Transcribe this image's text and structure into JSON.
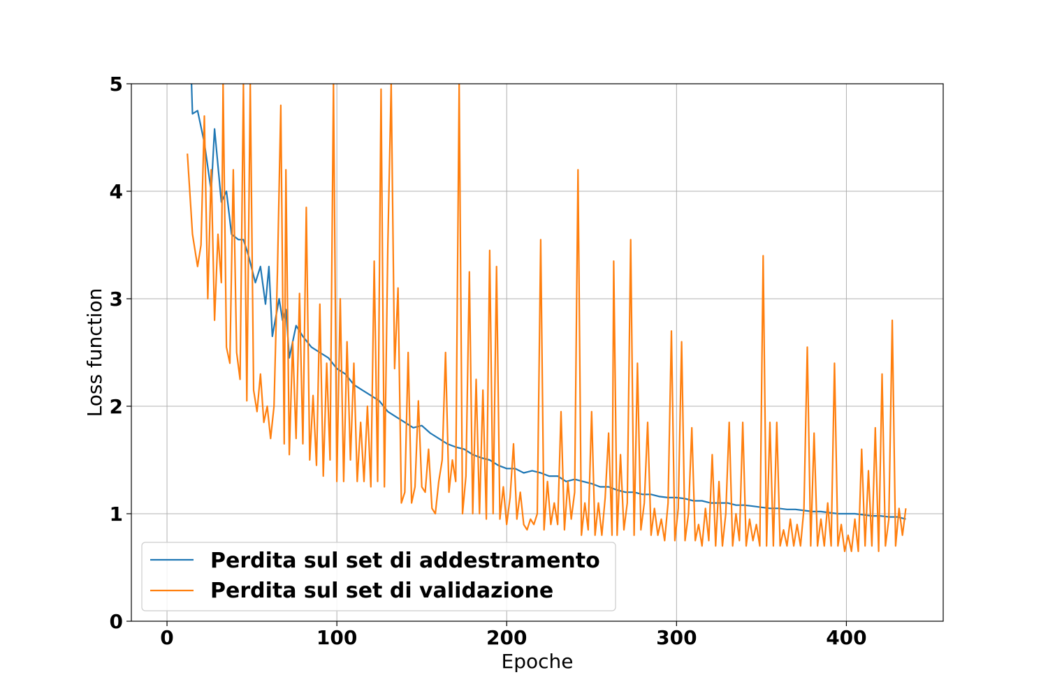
{
  "chart_data": {
    "type": "line",
    "xlabel": "Epoche",
    "ylabel": "Loss function",
    "xlim": [
      -21,
      457
    ],
    "ylim": [
      0,
      5
    ],
    "xticks": [
      0,
      100,
      200,
      300,
      400
    ],
    "yticks": [
      0,
      1,
      2,
      3,
      4,
      5
    ],
    "grid": true,
    "legend_position": "lower-left",
    "series": [
      {
        "name": "Perdita sul set di addestramento",
        "color": "#1f77b4",
        "points": [
          [
            12,
            6.2
          ],
          [
            15,
            4.72
          ],
          [
            18,
            4.75
          ],
          [
            22,
            4.45
          ],
          [
            26,
            4.0
          ],
          [
            28,
            4.58
          ],
          [
            32,
            3.9
          ],
          [
            35,
            4.0
          ],
          [
            38,
            3.6
          ],
          [
            42,
            3.55
          ],
          [
            45,
            3.55
          ],
          [
            48,
            3.4
          ],
          [
            52,
            3.15
          ],
          [
            55,
            3.3
          ],
          [
            58,
            2.95
          ],
          [
            60,
            3.3
          ],
          [
            62,
            2.65
          ],
          [
            66,
            3.0
          ],
          [
            68,
            2.8
          ],
          [
            70,
            2.9
          ],
          [
            72,
            2.45
          ],
          [
            76,
            2.75
          ],
          [
            80,
            2.65
          ],
          [
            85,
            2.55
          ],
          [
            90,
            2.5
          ],
          [
            95,
            2.45
          ],
          [
            100,
            2.35
          ],
          [
            105,
            2.3
          ],
          [
            110,
            2.2
          ],
          [
            115,
            2.15
          ],
          [
            120,
            2.1
          ],
          [
            125,
            2.05
          ],
          [
            130,
            1.95
          ],
          [
            135,
            1.9
          ],
          [
            140,
            1.85
          ],
          [
            145,
            1.8
          ],
          [
            150,
            1.82
          ],
          [
            155,
            1.75
          ],
          [
            160,
            1.7
          ],
          [
            165,
            1.65
          ],
          [
            170,
            1.62
          ],
          [
            175,
            1.6
          ],
          [
            180,
            1.55
          ],
          [
            185,
            1.52
          ],
          [
            190,
            1.5
          ],
          [
            195,
            1.45
          ],
          [
            200,
            1.42
          ],
          [
            205,
            1.42
          ],
          [
            210,
            1.38
          ],
          [
            215,
            1.4
          ],
          [
            220,
            1.38
          ],
          [
            225,
            1.35
          ],
          [
            230,
            1.35
          ],
          [
            235,
            1.3
          ],
          [
            240,
            1.32
          ],
          [
            245,
            1.3
          ],
          [
            250,
            1.28
          ],
          [
            255,
            1.25
          ],
          [
            260,
            1.25
          ],
          [
            265,
            1.22
          ],
          [
            270,
            1.2
          ],
          [
            275,
            1.2
          ],
          [
            280,
            1.18
          ],
          [
            285,
            1.18
          ],
          [
            290,
            1.16
          ],
          [
            295,
            1.15
          ],
          [
            300,
            1.15
          ],
          [
            305,
            1.14
          ],
          [
            310,
            1.12
          ],
          [
            315,
            1.12
          ],
          [
            320,
            1.1
          ],
          [
            325,
            1.1
          ],
          [
            330,
            1.1
          ],
          [
            335,
            1.08
          ],
          [
            340,
            1.08
          ],
          [
            345,
            1.07
          ],
          [
            350,
            1.06
          ],
          [
            355,
            1.05
          ],
          [
            360,
            1.05
          ],
          [
            365,
            1.04
          ],
          [
            370,
            1.04
          ],
          [
            375,
            1.03
          ],
          [
            380,
            1.02
          ],
          [
            385,
            1.02
          ],
          [
            390,
            1.01
          ],
          [
            395,
            1.0
          ],
          [
            400,
            1.0
          ],
          [
            405,
            1.0
          ],
          [
            410,
            0.99
          ],
          [
            415,
            0.98
          ],
          [
            420,
            0.98
          ],
          [
            425,
            0.97
          ],
          [
            430,
            0.97
          ],
          [
            435,
            0.95
          ]
        ]
      },
      {
        "name": "Perdita sul set di validazione",
        "color": "#ff7f0e",
        "points": [
          [
            12,
            4.35
          ],
          [
            15,
            3.6
          ],
          [
            18,
            3.3
          ],
          [
            20,
            3.5
          ],
          [
            22,
            4.7
          ],
          [
            24,
            3.0
          ],
          [
            26,
            4.2
          ],
          [
            28,
            2.8
          ],
          [
            30,
            3.6
          ],
          [
            32,
            3.15
          ],
          [
            33,
            5.0
          ],
          [
            35,
            2.55
          ],
          [
            37,
            2.4
          ],
          [
            39,
            4.2
          ],
          [
            41,
            2.5
          ],
          [
            43,
            2.25
          ],
          [
            45,
            5.0
          ],
          [
            47,
            2.05
          ],
          [
            49,
            5.0
          ],
          [
            51,
            2.15
          ],
          [
            53,
            1.95
          ],
          [
            55,
            2.3
          ],
          [
            57,
            1.85
          ],
          [
            59,
            2.0
          ],
          [
            61,
            1.7
          ],
          [
            63,
            2.0
          ],
          [
            65,
            3.25
          ],
          [
            67,
            4.8
          ],
          [
            69,
            1.65
          ],
          [
            70,
            4.2
          ],
          [
            72,
            1.55
          ],
          [
            74,
            2.6
          ],
          [
            76,
            1.7
          ],
          [
            78,
            3.05
          ],
          [
            80,
            1.65
          ],
          [
            82,
            3.85
          ],
          [
            84,
            1.5
          ],
          [
            86,
            2.1
          ],
          [
            88,
            1.45
          ],
          [
            90,
            2.95
          ],
          [
            92,
            1.35
          ],
          [
            94,
            2.4
          ],
          [
            96,
            1.5
          ],
          [
            98,
            5.0
          ],
          [
            100,
            1.3
          ],
          [
            102,
            3.0
          ],
          [
            104,
            1.3
          ],
          [
            106,
            2.6
          ],
          [
            108,
            1.5
          ],
          [
            110,
            2.4
          ],
          [
            112,
            1.3
          ],
          [
            114,
            1.85
          ],
          [
            116,
            1.3
          ],
          [
            118,
            2.0
          ],
          [
            120,
            1.25
          ],
          [
            122,
            3.35
          ],
          [
            124,
            1.3
          ],
          [
            126,
            4.95
          ],
          [
            128,
            1.25
          ],
          [
            130,
            3.5
          ],
          [
            132,
            5.0
          ],
          [
            134,
            2.35
          ],
          [
            136,
            3.1
          ],
          [
            138,
            1.1
          ],
          [
            140,
            1.2
          ],
          [
            142,
            2.5
          ],
          [
            144,
            1.1
          ],
          [
            146,
            1.25
          ],
          [
            148,
            2.05
          ],
          [
            150,
            1.25
          ],
          [
            152,
            1.2
          ],
          [
            154,
            1.6
          ],
          [
            156,
            1.05
          ],
          [
            158,
            1.0
          ],
          [
            160,
            1.3
          ],
          [
            162,
            1.5
          ],
          [
            164,
            2.5
          ],
          [
            166,
            1.2
          ],
          [
            168,
            1.5
          ],
          [
            170,
            1.3
          ],
          [
            172,
            5.0
          ],
          [
            174,
            1.0
          ],
          [
            176,
            1.35
          ],
          [
            178,
            3.25
          ],
          [
            180,
            1.0
          ],
          [
            182,
            2.25
          ],
          [
            184,
            1.0
          ],
          [
            186,
            2.15
          ],
          [
            188,
            0.95
          ],
          [
            190,
            3.45
          ],
          [
            192,
            1.0
          ],
          [
            194,
            3.3
          ],
          [
            196,
            0.95
          ],
          [
            198,
            1.25
          ],
          [
            200,
            0.9
          ],
          [
            202,
            1.15
          ],
          [
            204,
            1.65
          ],
          [
            206,
            0.95
          ],
          [
            208,
            1.2
          ],
          [
            210,
            0.9
          ],
          [
            212,
            0.85
          ],
          [
            214,
            0.95
          ],
          [
            216,
            0.9
          ],
          [
            218,
            1.0
          ],
          [
            220,
            3.55
          ],
          [
            222,
            0.85
          ],
          [
            224,
            1.3
          ],
          [
            226,
            0.9
          ],
          [
            228,
            1.1
          ],
          [
            230,
            0.9
          ],
          [
            232,
            1.95
          ],
          [
            234,
            0.85
          ],
          [
            236,
            1.3
          ],
          [
            238,
            0.95
          ],
          [
            240,
            1.2
          ],
          [
            242,
            4.2
          ],
          [
            244,
            0.8
          ],
          [
            246,
            1.1
          ],
          [
            248,
            0.85
          ],
          [
            250,
            1.95
          ],
          [
            252,
            0.8
          ],
          [
            254,
            1.1
          ],
          [
            256,
            0.8
          ],
          [
            258,
            1.15
          ],
          [
            260,
            1.75
          ],
          [
            262,
            0.8
          ],
          [
            263,
            3.35
          ],
          [
            265,
            0.8
          ],
          [
            267,
            1.55
          ],
          [
            269,
            0.85
          ],
          [
            271,
            1.1
          ],
          [
            273,
            3.55
          ],
          [
            275,
            0.8
          ],
          [
            277,
            2.4
          ],
          [
            279,
            0.85
          ],
          [
            281,
            1.1
          ],
          [
            283,
            1.85
          ],
          [
            285,
            0.8
          ],
          [
            287,
            1.05
          ],
          [
            289,
            0.8
          ],
          [
            291,
            0.95
          ],
          [
            293,
            0.75
          ],
          [
            295,
            1.1
          ],
          [
            297,
            2.7
          ],
          [
            299,
            0.75
          ],
          [
            301,
            1.05
          ],
          [
            303,
            2.6
          ],
          [
            305,
            0.75
          ],
          [
            307,
            1.0
          ],
          [
            309,
            1.8
          ],
          [
            311,
            0.75
          ],
          [
            313,
            0.9
          ],
          [
            315,
            0.7
          ],
          [
            317,
            1.05
          ],
          [
            319,
            0.75
          ],
          [
            321,
            1.55
          ],
          [
            323,
            0.7
          ],
          [
            325,
            1.3
          ],
          [
            327,
            0.7
          ],
          [
            329,
            1.0
          ],
          [
            331,
            1.85
          ],
          [
            333,
            0.7
          ],
          [
            335,
            1.0
          ],
          [
            337,
            0.75
          ],
          [
            339,
            1.85
          ],
          [
            341,
            0.7
          ],
          [
            343,
            0.95
          ],
          [
            345,
            0.75
          ],
          [
            347,
            0.9
          ],
          [
            349,
            0.7
          ],
          [
            351,
            3.4
          ],
          [
            353,
            0.7
          ],
          [
            355,
            1.85
          ],
          [
            357,
            0.7
          ],
          [
            359,
            1.85
          ],
          [
            361,
            0.7
          ],
          [
            363,
            0.85
          ],
          [
            365,
            0.7
          ],
          [
            367,
            0.95
          ],
          [
            369,
            0.7
          ],
          [
            371,
            0.9
          ],
          [
            373,
            0.7
          ],
          [
            375,
            1.05
          ],
          [
            377,
            2.55
          ],
          [
            379,
            0.7
          ],
          [
            381,
            1.75
          ],
          [
            383,
            0.7
          ],
          [
            385,
            0.95
          ],
          [
            387,
            0.7
          ],
          [
            389,
            1.1
          ],
          [
            391,
            0.7
          ],
          [
            393,
            2.4
          ],
          [
            395,
            0.7
          ],
          [
            397,
            0.9
          ],
          [
            399,
            0.65
          ],
          [
            401,
            0.8
          ],
          [
            403,
            0.65
          ],
          [
            405,
            0.95
          ],
          [
            407,
            0.65
          ],
          [
            409,
            1.6
          ],
          [
            411,
            0.7
          ],
          [
            413,
            1.4
          ],
          [
            415,
            0.7
          ],
          [
            417,
            1.8
          ],
          [
            419,
            0.65
          ],
          [
            421,
            2.3
          ],
          [
            423,
            0.7
          ],
          [
            425,
            0.95
          ],
          [
            427,
            2.8
          ],
          [
            429,
            0.7
          ],
          [
            431,
            1.05
          ],
          [
            433,
            0.8
          ],
          [
            435,
            1.05
          ]
        ]
      }
    ]
  }
}
